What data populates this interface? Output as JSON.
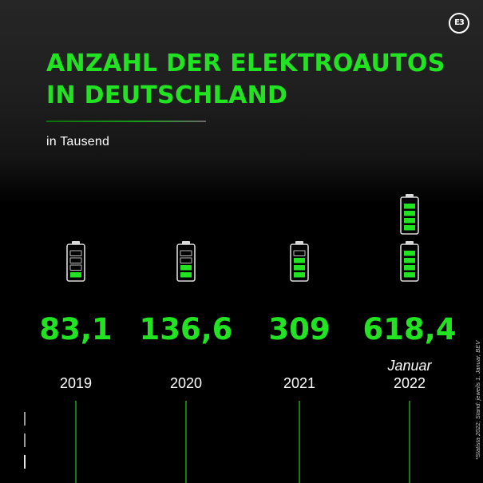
{
  "brand": {
    "logo_text": "E3"
  },
  "header": {
    "title_line1": "ANZAHL DER ELEKTROAUTOS",
    "title_line2": "IN DEUTSCHLAND",
    "subtitle": "in Tausend"
  },
  "footnote": "*Statista 2022; Stand: jeweils 1. Januar, BEV",
  "colors": {
    "accent": "#22e322",
    "background": "#000000",
    "text": "#ffffff",
    "battery_outline": "#d9d9d9"
  },
  "chart_data": {
    "type": "bar",
    "categories": [
      [
        "2019"
      ],
      [
        "2020"
      ],
      [
        "2021"
      ],
      [
        "Januar",
        "2022"
      ]
    ],
    "values": [
      83.1,
      136.6,
      309,
      618.4
    ],
    "value_labels": [
      "83,1",
      "136,6",
      "309",
      "618,4"
    ],
    "battery_level_segments": [
      1,
      2,
      3,
      4
    ],
    "batteries_per_category": [
      1,
      1,
      1,
      2
    ],
    "title": "ANZAHL DER ELEKTROAUTOS IN DEUTSCHLAND",
    "unit": "in Tausend",
    "legend": "none",
    "grid": false
  }
}
